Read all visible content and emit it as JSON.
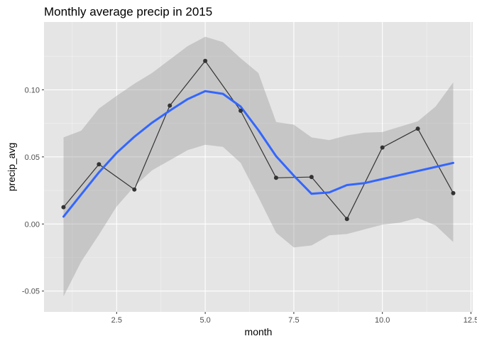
{
  "chart_data": {
    "type": "line",
    "title": "Monthly average precip in 2015",
    "xlabel": "month",
    "ylabel": "precip_avg",
    "xlim": [
      0.45,
      12.55
    ],
    "ylim": [
      -0.0655,
      0.1505
    ],
    "x_ticks": [
      2.5,
      5.0,
      7.5,
      10.0,
      12.5
    ],
    "x_tick_labels": [
      "2.5",
      "5.0",
      "7.5",
      "10.0",
      "12.5"
    ],
    "y_ticks": [
      -0.05,
      0.0,
      0.05,
      0.1
    ],
    "y_tick_labels": [
      "-0.05",
      "0.00",
      "0.05",
      "0.10"
    ],
    "grid": true,
    "background_color": "#e5e5e5",
    "grid_color": "#ffffff",
    "series": [
      {
        "kind": "points+line",
        "color": "#333333",
        "x": [
          1,
          2,
          3,
          4,
          5,
          6,
          7,
          8,
          9,
          10,
          11,
          12
        ],
        "y": [
          0.0125,
          0.0445,
          0.0257,
          0.0882,
          0.1215,
          0.0844,
          0.0344,
          0.035,
          0.0037,
          0.057,
          0.071,
          0.023
        ]
      },
      {
        "kind": "smooth",
        "color": "#3366ff",
        "x": [
          1,
          1.5,
          2,
          2.5,
          3,
          3.5,
          4,
          4.5,
          5,
          5.5,
          6,
          6.5,
          7,
          7.5,
          8,
          8.5,
          9,
          9.5,
          10,
          10.5,
          11,
          11.5,
          12
        ],
        "y": [
          0.0055,
          0.022,
          0.0385,
          0.053,
          0.065,
          0.0755,
          0.0845,
          0.093,
          0.099,
          0.097,
          0.0875,
          0.07,
          0.0505,
          0.036,
          0.0225,
          0.0235,
          0.029,
          0.0305,
          0.0335,
          0.0365,
          0.0395,
          0.0425,
          0.0455
        ],
        "ci_lower": [
          -0.054,
          -0.028,
          -0.008,
          0.013,
          0.028,
          0.04,
          0.0475,
          0.055,
          0.059,
          0.0575,
          0.0455,
          0.02,
          -0.0065,
          -0.0175,
          -0.016,
          -0.0085,
          -0.0075,
          -0.004,
          -0.0005,
          0.001,
          0.0045,
          -0.001,
          -0.0135
        ],
        "ci_upper": [
          0.0645,
          0.0695,
          0.086,
          0.0955,
          0.1045,
          0.1125,
          0.1225,
          0.1325,
          0.1395,
          0.1355,
          0.1235,
          0.1125,
          0.076,
          0.074,
          0.0645,
          0.0625,
          0.066,
          0.068,
          0.0685,
          0.0725,
          0.0765,
          0.0875,
          0.1055
        ],
        "ci_color": "#999999"
      }
    ]
  }
}
